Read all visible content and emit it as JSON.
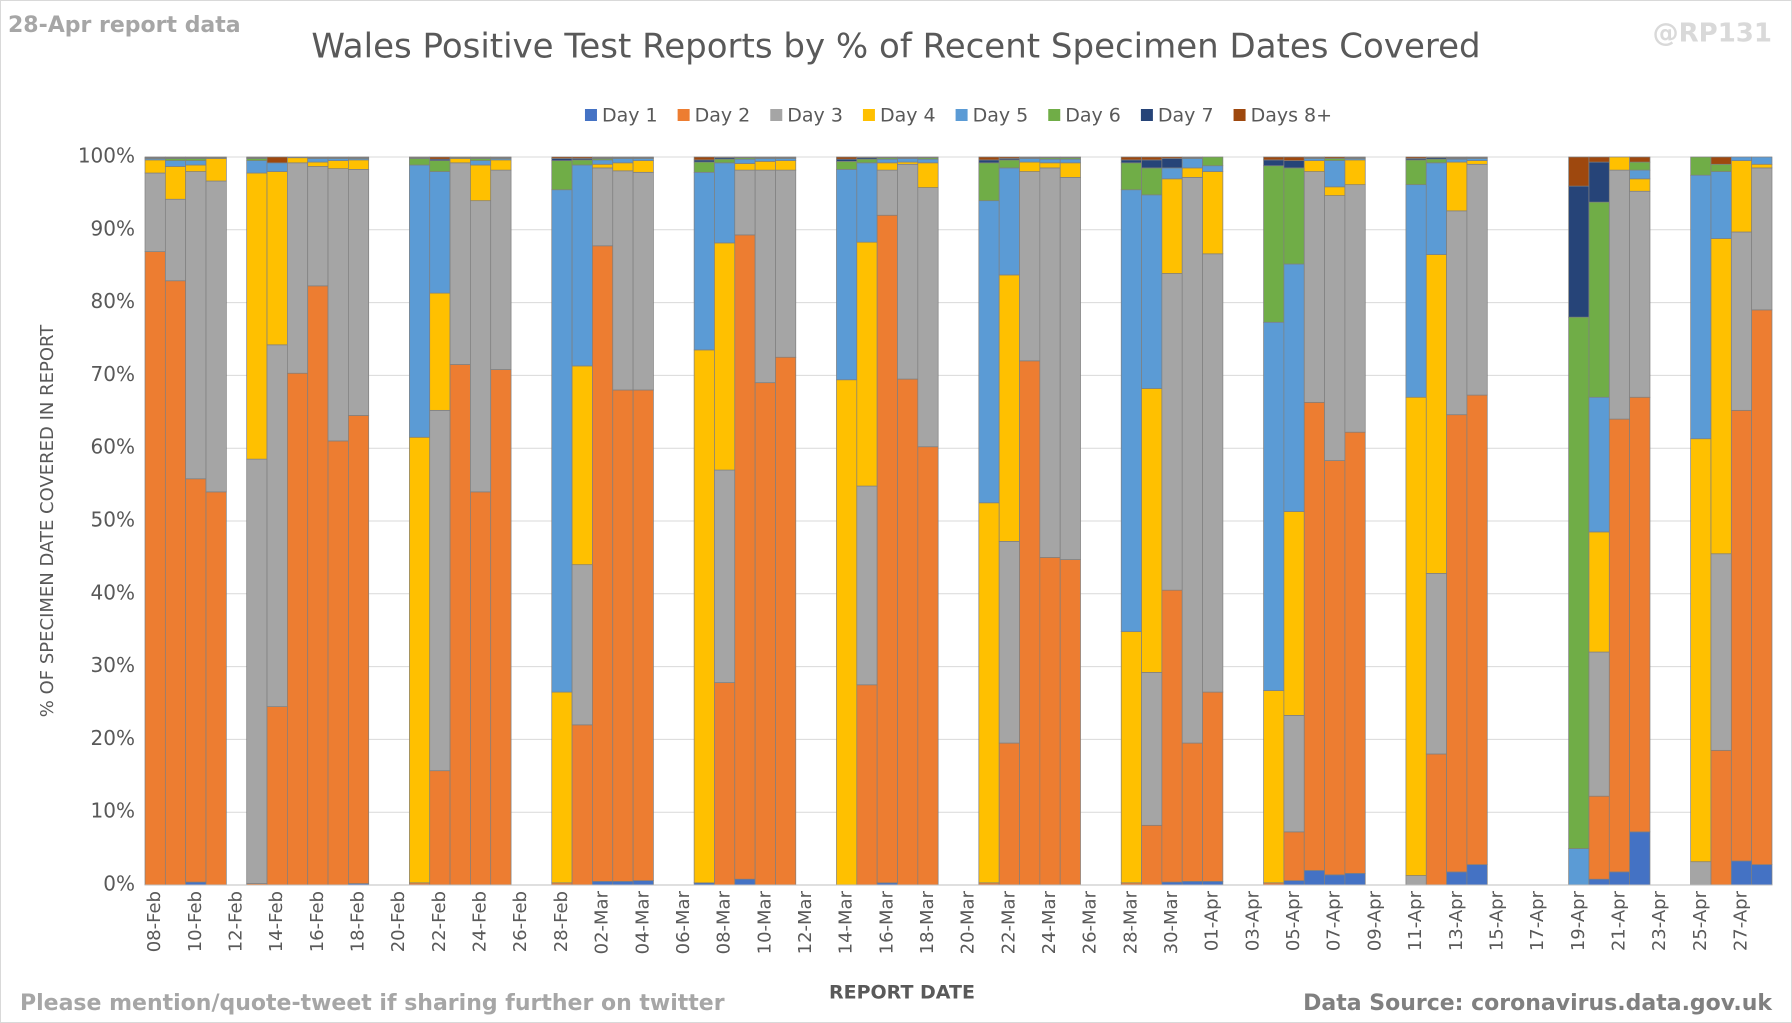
{
  "chart_data": {
    "type": "stacked_bar",
    "title": "Wales Positive Test Reports by % of Recent Specimen Dates Covered",
    "corner_left": "28-Apr report data",
    "corner_right": "@RP131",
    "footer_left": "Please mention/quote-tweet if sharing further on twitter",
    "footer_right": "Data Source: coronavirus.data.gov.uk",
    "x_label": "REPORT DATE",
    "y_label": "% OF SPECIMEN DATE COVERED IN REPORT",
    "legend": "top",
    "grid": true,
    "ylim": [
      0,
      100
    ],
    "yticks": [
      {
        "value": 0,
        "label": "0%"
      },
      {
        "value": 10,
        "label": "10%"
      },
      {
        "value": 20,
        "label": "20%"
      },
      {
        "value": 30,
        "label": "30%"
      },
      {
        "value": 40,
        "label": "40%"
      },
      {
        "value": 50,
        "label": "50%"
      },
      {
        "value": 60,
        "label": "60%"
      },
      {
        "value": 70,
        "label": "70%"
      },
      {
        "value": 80,
        "label": "80%"
      },
      {
        "value": 90,
        "label": "90%"
      },
      {
        "value": 100,
        "label": "100%"
      }
    ],
    "categories": [
      "08-Feb",
      null,
      "10-Feb",
      null,
      "12-Feb",
      null,
      "14-Feb",
      null,
      "16-Feb",
      null,
      "18-Feb",
      null,
      "20-Feb",
      null,
      "22-Feb",
      null,
      "24-Feb",
      null,
      "26-Feb",
      null,
      "28-Feb",
      null,
      "02-Mar",
      null,
      "04-Mar",
      null,
      "06-Mar",
      null,
      "08-Mar",
      null,
      "10-Mar",
      null,
      "12-Mar",
      null,
      "14-Mar",
      null,
      "16-Mar",
      null,
      "18-Mar",
      null,
      "20-Mar",
      null,
      "22-Mar",
      null,
      "24-Mar",
      null,
      "26-Mar",
      null,
      "28-Mar",
      null,
      "30-Mar",
      null,
      "01-Apr",
      null,
      "03-Apr",
      null,
      "05-Apr",
      null,
      "07-Apr",
      null,
      "09-Apr",
      null,
      "11-Apr",
      null,
      "13-Apr",
      null,
      "15-Apr",
      null,
      "17-Apr",
      null,
      "19-Apr",
      null,
      "21-Apr",
      null,
      "23-Apr",
      null,
      "25-Apr",
      null,
      "27-Apr",
      null
    ],
    "series": [
      {
        "name": "Day 1",
        "color": "#4472c4",
        "values": [
          0,
          0,
          0.4,
          0,
          0,
          0,
          0,
          0,
          0,
          0,
          0.2,
          0,
          0,
          0,
          0,
          0,
          0,
          0,
          0,
          0,
          0,
          0,
          0.5,
          0.5,
          0.6,
          0,
          0,
          0.3,
          0,
          0.8,
          0,
          0,
          0,
          0,
          0,
          0,
          0.3,
          0,
          0,
          0,
          0,
          0,
          0,
          0,
          0,
          0,
          0,
          0,
          0,
          0,
          0.4,
          0.5,
          0.5,
          0,
          0,
          0,
          0.6,
          2,
          1.4,
          1.6,
          0,
          0,
          0,
          0,
          1.8,
          2.8,
          0,
          0,
          0,
          0,
          0,
          0.8,
          1.8,
          7.3,
          0,
          0,
          0,
          0,
          3.3,
          2.8
        ]
      },
      {
        "name": "Day 2",
        "color": "#ed7d31",
        "values": [
          87,
          83,
          55.4,
          54,
          0,
          0.2,
          24.5,
          70.3,
          82.3,
          61,
          64.3,
          0,
          0,
          0.3,
          15.7,
          71.5,
          54,
          70.8,
          0,
          0,
          0.3,
          22,
          87.3,
          67.5,
          67.4,
          0,
          0,
          0,
          27.8,
          88.5,
          69,
          72.5,
          0,
          0,
          0,
          27.5,
          91.7,
          69.5,
          60.2,
          0,
          0,
          0.3,
          19.5,
          72,
          45,
          44.7,
          0,
          0,
          0.3,
          8.2,
          40.1,
          19,
          26,
          0,
          0,
          0.3,
          6.7,
          64.3,
          56.9,
          60.6,
          0,
          0,
          0,
          18,
          62.8,
          64.5,
          0,
          0,
          0,
          0,
          0,
          11.4,
          62.2,
          59.7,
          0,
          0,
          0,
          18.5,
          61.9,
          76.2
        ]
      },
      {
        "name": "Day 3",
        "color": "#a5a5a5",
        "values": [
          10.8,
          11.2,
          42.2,
          42.7,
          0,
          58.3,
          49.7,
          28.9,
          16.4,
          37.4,
          33.8,
          0,
          0,
          0,
          49.5,
          27.7,
          40,
          27.4,
          0,
          0,
          0,
          22,
          10.7,
          30.1,
          29.9,
          0,
          0,
          0,
          29.2,
          8.9,
          29.2,
          25.7,
          0,
          0,
          0,
          27.3,
          6.2,
          29.5,
          35.6,
          0,
          0,
          0,
          27.7,
          26,
          53.5,
          52.5,
          0,
          0,
          0,
          21,
          43.5,
          77.7,
          60.2,
          0,
          0,
          0,
          16,
          31.7,
          36.4,
          34,
          0,
          0,
          1.3,
          24.8,
          28,
          31.7,
          0,
          0,
          0,
          0,
          0,
          19.8,
          34.2,
          28.3,
          0,
          0,
          3.2,
          27,
          24.5,
          19.5
        ]
      },
      {
        "name": "Day 4",
        "color": "#ffc000",
        "values": [
          1.8,
          4.5,
          0.9,
          3.1,
          0,
          39.3,
          23.8,
          0.7,
          0.6,
          1.1,
          1.3,
          0,
          0,
          61.2,
          16.1,
          0.6,
          4.9,
          1.4,
          0,
          0,
          26.2,
          27.3,
          0.5,
          1.1,
          1.6,
          0,
          0,
          73.2,
          31.2,
          0.9,
          1.2,
          1.3,
          0,
          0,
          69.4,
          33.5,
          1,
          0.3,
          3.4,
          0,
          0,
          52.2,
          36.6,
          1.3,
          0.7,
          2,
          0,
          0,
          34.5,
          39,
          13,
          1.3,
          11.3,
          0,
          0,
          26.4,
          28,
          1.5,
          1.2,
          3.4,
          0,
          0,
          65.7,
          43.8,
          6.7,
          0.5,
          0,
          0,
          0,
          0,
          0,
          16.5,
          1.8,
          1.7,
          0,
          0,
          58.1,
          43.3,
          9.8,
          0.5
        ]
      },
      {
        "name": "Day 5",
        "color": "#5b9bd5",
        "values": [
          0.2,
          0.8,
          0.6,
          0.1,
          0,
          1.7,
          1.2,
          0.1,
          0.5,
          0.3,
          0.2,
          0,
          0,
          37.4,
          16.7,
          0.1,
          0.6,
          0.2,
          0,
          0,
          69,
          27.6,
          0.6,
          0.6,
          0.3,
          0,
          0,
          24.4,
          11,
          0.6,
          0.4,
          0.3,
          0,
          0,
          28.9,
          10.9,
          0.5,
          0.5,
          0.5,
          0,
          0,
          41.5,
          14.7,
          0.5,
          0.5,
          0.5,
          0,
          0,
          60.7,
          26.6,
          1.5,
          1.3,
          0.8,
          0,
          0,
          50.6,
          34,
          0.3,
          3.6,
          0.2,
          0,
          0,
          29.2,
          12.6,
          0.4,
          0.3,
          0,
          0,
          0,
          0,
          5,
          18.5,
          0,
          1.2,
          0,
          0,
          36.2,
          9.2,
          0.5,
          1
        ]
      },
      {
        "name": "Day 6",
        "color": "#70ad47",
        "values": [
          0.1,
          0.3,
          0.3,
          0.1,
          0,
          0.3,
          0,
          0,
          0.1,
          0.1,
          0.1,
          0,
          0,
          0.9,
          1.5,
          0.1,
          0.3,
          0.1,
          0,
          0,
          4,
          0.7,
          0.2,
          0.1,
          0.1,
          0,
          0,
          1.4,
          0.5,
          0.2,
          0.1,
          0.1,
          0,
          0,
          1.1,
          0.5,
          0.2,
          0.1,
          0.2,
          0,
          0,
          5.2,
          1.1,
          0.1,
          0.2,
          0.2,
          0,
          0,
          3.7,
          3.7,
          0,
          0.1,
          1.2,
          0,
          0,
          21.5,
          13.2,
          0.1,
          0.3,
          0.1,
          0,
          0,
          3.4,
          0.5,
          0.1,
          0.1,
          0,
          0,
          0,
          0,
          73,
          26.8,
          0,
          1.1,
          0,
          0,
          2.5,
          1,
          0,
          0
        ]
      },
      {
        "name": "Day 7",
        "color": "#264478",
        "values": [
          0,
          0.1,
          0.1,
          0,
          0,
          0.1,
          0,
          0,
          0,
          0,
          0,
          0,
          0,
          0.1,
          0.2,
          0,
          0.1,
          0,
          0,
          0,
          0.3,
          0.2,
          0.1,
          0,
          0,
          0,
          0,
          0.3,
          0.2,
          0,
          0,
          0,
          0,
          0,
          0.3,
          0.2,
          0,
          0,
          0,
          0,
          0,
          0.4,
          0.2,
          0,
          0,
          0,
          0,
          0,
          0.4,
          1.1,
          1.3,
          0,
          0,
          0,
          0,
          0.8,
          1,
          0,
          0,
          0,
          0,
          0,
          0.2,
          0.2,
          0.1,
          0,
          0,
          0,
          0,
          0,
          18,
          5.5,
          0,
          0,
          0,
          0,
          0,
          0,
          0,
          0
        ]
      },
      {
        "name": "Days 8+",
        "color": "#9e480e",
        "values": [
          0.1,
          0.1,
          0.1,
          0,
          0,
          0.1,
          0.8,
          0,
          0.1,
          0.1,
          0.1,
          0,
          0,
          0.1,
          0.3,
          0,
          0.1,
          0.1,
          0,
          0,
          0.2,
          0.2,
          0.1,
          0.1,
          0.1,
          0,
          0,
          0.4,
          0.1,
          0.1,
          0.1,
          0.1,
          0,
          0,
          0.3,
          0.1,
          0.1,
          0.1,
          0.1,
          0,
          0,
          0.4,
          0.2,
          0.1,
          0.1,
          0.1,
          0,
          0,
          0.4,
          0.4,
          0.2,
          0.1,
          0,
          0,
          0,
          0.4,
          0.5,
          0.1,
          0.2,
          0.1,
          0,
          0,
          0.2,
          0.1,
          0.1,
          0.1,
          0,
          0,
          0,
          0,
          4,
          0.7,
          0,
          0.7,
          0,
          0,
          0,
          1,
          0,
          0
        ]
      }
    ]
  }
}
